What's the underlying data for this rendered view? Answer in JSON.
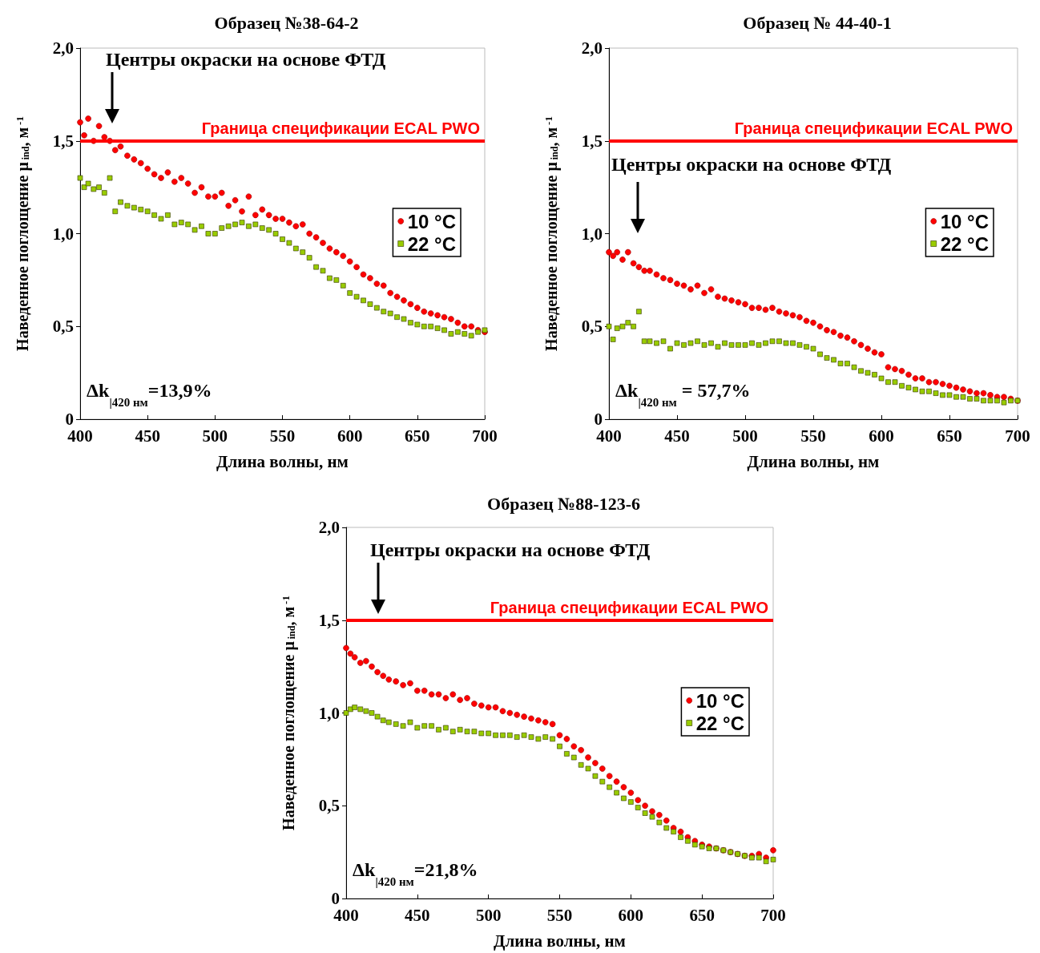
{
  "chart_data": [
    {
      "type": "scatter",
      "title": "Образец №38-64-2",
      "xlabel": "Длина волны, нм",
      "ylabel": "Наведенное поглощение μ$_{ind}$, м$^{-1}$",
      "xlim": [
        400,
        700
      ],
      "xticks": [
        400,
        450,
        500,
        550,
        600,
        650,
        700
      ],
      "ylim": [
        0,
        2
      ],
      "yticks": [
        {
          "value": 0,
          "label": "0"
        },
        {
          "value": 0.5,
          "label": "0,5"
        },
        {
          "value": 1,
          "label": "1,0"
        },
        {
          "value": 1.5,
          "label": "1,5"
        },
        {
          "value": 2,
          "label": "2,0"
        }
      ],
      "legend": "right",
      "series": [
        {
          "name": "10 °C",
          "color": "#ff0000",
          "marker": "circle",
          "x": [
            400,
            403,
            406,
            410,
            414,
            418,
            422,
            426,
            430,
            435,
            440,
            445,
            450,
            455,
            460,
            465,
            470,
            475,
            480,
            485,
            490,
            495,
            500,
            505,
            510,
            515,
            520,
            525,
            530,
            535,
            540,
            545,
            550,
            555,
            560,
            565,
            570,
            575,
            580,
            585,
            590,
            595,
            600,
            605,
            610,
            615,
            620,
            625,
            630,
            635,
            640,
            645,
            650,
            655,
            660,
            665,
            670,
            675,
            680,
            685,
            690,
            695,
            700
          ],
          "values": [
            1.6,
            1.53,
            1.62,
            1.5,
            1.58,
            1.52,
            1.5,
            1.45,
            1.47,
            1.42,
            1.4,
            1.38,
            1.35,
            1.32,
            1.3,
            1.33,
            1.28,
            1.3,
            1.27,
            1.22,
            1.25,
            1.2,
            1.2,
            1.22,
            1.15,
            1.18,
            1.12,
            1.2,
            1.1,
            1.13,
            1.1,
            1.08,
            1.08,
            1.06,
            1.04,
            1.05,
            1.0,
            0.98,
            0.95,
            0.92,
            0.9,
            0.88,
            0.85,
            0.82,
            0.78,
            0.76,
            0.73,
            0.72,
            0.68,
            0.66,
            0.64,
            0.62,
            0.6,
            0.58,
            0.57,
            0.56,
            0.55,
            0.54,
            0.52,
            0.5,
            0.5,
            0.48,
            0.47
          ]
        },
        {
          "name": "22 °C",
          "color": "#99cc00",
          "marker": "square",
          "x": [
            400,
            403,
            406,
            410,
            414,
            418,
            422,
            426,
            430,
            435,
            440,
            445,
            450,
            455,
            460,
            465,
            470,
            475,
            480,
            485,
            490,
            495,
            500,
            505,
            510,
            515,
            520,
            525,
            530,
            535,
            540,
            545,
            550,
            555,
            560,
            565,
            570,
            575,
            580,
            585,
            590,
            595,
            600,
            605,
            610,
            615,
            620,
            625,
            630,
            635,
            640,
            645,
            650,
            655,
            660,
            665,
            670,
            675,
            680,
            685,
            690,
            695,
            700
          ],
          "values": [
            1.3,
            1.25,
            1.27,
            1.24,
            1.25,
            1.22,
            1.3,
            1.12,
            1.17,
            1.15,
            1.14,
            1.13,
            1.12,
            1.1,
            1.08,
            1.1,
            1.05,
            1.06,
            1.05,
            1.02,
            1.04,
            1.0,
            1.0,
            1.03,
            1.04,
            1.05,
            1.06,
            1.04,
            1.05,
            1.03,
            1.02,
            1.0,
            0.97,
            0.95,
            0.92,
            0.9,
            0.87,
            0.82,
            0.8,
            0.76,
            0.75,
            0.72,
            0.68,
            0.66,
            0.64,
            0.62,
            0.6,
            0.58,
            0.57,
            0.55,
            0.54,
            0.52,
            0.51,
            0.5,
            0.5,
            0.49,
            0.48,
            0.46,
            0.47,
            0.46,
            0.45,
            0.47,
            0.48
          ]
        }
      ],
      "ref_lines": [
        {
          "axis": "y",
          "value": 1.5,
          "label": "Граница спецификации ECAL PWO",
          "color": "#ff0000"
        }
      ],
      "annotations": [
        "Центры окраски на основе ФТД",
        "Δk$_{|420 нм}$=13,9%"
      ]
    },
    {
      "type": "scatter",
      "title": "Образец № 44-40-1",
      "xlabel": "Длина волны, нм",
      "ylabel": "Наведенное поглощение μ$_{ind}$, м$^{-1}$",
      "xlim": [
        400,
        700
      ],
      "xticks": [
        400,
        450,
        500,
        550,
        600,
        650,
        700
      ],
      "ylim": [
        0,
        2
      ],
      "yticks": [
        0,
        {
          "value": 0.5,
          "label": "0,5"
        },
        {
          "value": 1,
          "label": "1,0"
        },
        {
          "value": 1.5,
          "label": "1,5"
        },
        {
          "value": 2,
          "label": "2,0"
        }
      ],
      "legend": "right",
      "series": [
        {
          "name": "10 °C",
          "color": "#ff0000",
          "marker": "circle",
          "x": [
            400,
            403,
            406,
            410,
            414,
            418,
            422,
            426,
            430,
            435,
            440,
            445,
            450,
            455,
            460,
            465,
            470,
            475,
            480,
            485,
            490,
            495,
            500,
            505,
            510,
            515,
            520,
            525,
            530,
            535,
            540,
            545,
            550,
            555,
            560,
            565,
            570,
            575,
            580,
            585,
            590,
            595,
            600,
            605,
            610,
            615,
            620,
            625,
            630,
            635,
            640,
            645,
            650,
            655,
            660,
            665,
            670,
            675,
            680,
            685,
            690,
            695,
            700
          ],
          "values": [
            0.9,
            0.88,
            0.9,
            0.86,
            0.9,
            0.84,
            0.82,
            0.8,
            0.8,
            0.78,
            0.76,
            0.75,
            0.73,
            0.72,
            0.7,
            0.72,
            0.68,
            0.7,
            0.66,
            0.65,
            0.64,
            0.63,
            0.62,
            0.6,
            0.6,
            0.59,
            0.6,
            0.58,
            0.57,
            0.56,
            0.55,
            0.53,
            0.52,
            0.5,
            0.48,
            0.47,
            0.45,
            0.44,
            0.42,
            0.4,
            0.38,
            0.36,
            0.35,
            0.28,
            0.27,
            0.26,
            0.24,
            0.22,
            0.22,
            0.2,
            0.2,
            0.19,
            0.18,
            0.17,
            0.16,
            0.15,
            0.14,
            0.14,
            0.13,
            0.12,
            0.12,
            0.11,
            0.1
          ]
        },
        {
          "name": "22 °C",
          "color": "#99cc00",
          "marker": "square",
          "x": [
            400,
            403,
            406,
            410,
            414,
            418,
            422,
            426,
            430,
            435,
            440,
            445,
            450,
            455,
            460,
            465,
            470,
            475,
            480,
            485,
            490,
            495,
            500,
            505,
            510,
            515,
            520,
            525,
            530,
            535,
            540,
            545,
            550,
            555,
            560,
            565,
            570,
            575,
            580,
            585,
            590,
            595,
            600,
            605,
            610,
            615,
            620,
            625,
            630,
            635,
            640,
            645,
            650,
            655,
            660,
            665,
            670,
            675,
            680,
            685,
            690,
            695,
            700
          ],
          "values": [
            0.5,
            0.43,
            0.49,
            0.5,
            0.52,
            0.5,
            0.58,
            0.42,
            0.42,
            0.41,
            0.42,
            0.38,
            0.41,
            0.4,
            0.41,
            0.42,
            0.4,
            0.41,
            0.39,
            0.41,
            0.4,
            0.4,
            0.4,
            0.41,
            0.4,
            0.41,
            0.42,
            0.42,
            0.41,
            0.41,
            0.4,
            0.39,
            0.38,
            0.35,
            0.33,
            0.32,
            0.3,
            0.3,
            0.28,
            0.26,
            0.25,
            0.24,
            0.22,
            0.2,
            0.2,
            0.18,
            0.17,
            0.16,
            0.15,
            0.15,
            0.14,
            0.13,
            0.13,
            0.12,
            0.12,
            0.11,
            0.11,
            0.1,
            0.1,
            0.1,
            0.09,
            0.1,
            0.1
          ]
        }
      ],
      "ref_lines": [
        {
          "axis": "y",
          "value": 1.5,
          "label": "Граница спецификации ECAL PWO",
          "color": "#ff0000"
        }
      ],
      "annotations": [
        "Центры окраски на основе ФТД",
        "Δk$_{|420 нм}$ = 57,7%"
      ]
    },
    {
      "type": "scatter",
      "title": "Образец №88-123-6",
      "xlabel": "Длина волны, нм",
      "ylabel": "Наведенное поглощение μ$_{ind}$, м$^{-1}$",
      "xlim": [
        400,
        700
      ],
      "xticks": [
        400,
        450,
        500,
        550,
        600,
        650,
        700
      ],
      "ylim": [
        0,
        2
      ],
      "yticks": [
        0,
        {
          "value": 0.5,
          "label": "0,5"
        },
        {
          "value": 1,
          "label": "1,0"
        },
        {
          "value": 1.5,
          "label": "1,5"
        },
        {
          "value": 2,
          "label": "2,0"
        }
      ],
      "legend": "right",
      "series": [
        {
          "name": "10 °C",
          "color": "#ff0000",
          "marker": "circle",
          "x": [
            400,
            403,
            406,
            410,
            414,
            418,
            422,
            426,
            430,
            435,
            440,
            445,
            450,
            455,
            460,
            465,
            470,
            475,
            480,
            485,
            490,
            495,
            500,
            505,
            510,
            515,
            520,
            525,
            530,
            535,
            540,
            545,
            550,
            555,
            560,
            565,
            570,
            575,
            580,
            585,
            590,
            595,
            600,
            605,
            610,
            615,
            620,
            625,
            630,
            635,
            640,
            645,
            650,
            655,
            660,
            665,
            670,
            675,
            680,
            685,
            690,
            695,
            700
          ],
          "values": [
            1.35,
            1.32,
            1.3,
            1.27,
            1.28,
            1.25,
            1.22,
            1.2,
            1.18,
            1.17,
            1.15,
            1.16,
            1.12,
            1.12,
            1.1,
            1.1,
            1.08,
            1.1,
            1.07,
            1.08,
            1.05,
            1.04,
            1.03,
            1.03,
            1.01,
            1.0,
            0.99,
            0.98,
            0.97,
            0.96,
            0.95,
            0.94,
            0.88,
            0.86,
            0.82,
            0.8,
            0.76,
            0.73,
            0.7,
            0.66,
            0.63,
            0.6,
            0.57,
            0.53,
            0.5,
            0.47,
            0.45,
            0.42,
            0.38,
            0.36,
            0.33,
            0.31,
            0.29,
            0.28,
            0.27,
            0.26,
            0.25,
            0.24,
            0.23,
            0.23,
            0.24,
            0.22,
            0.26
          ]
        },
        {
          "name": "22 °C",
          "color": "#99cc00",
          "marker": "square",
          "x": [
            400,
            403,
            406,
            410,
            414,
            418,
            422,
            426,
            430,
            435,
            440,
            445,
            450,
            455,
            460,
            465,
            470,
            475,
            480,
            485,
            490,
            495,
            500,
            505,
            510,
            515,
            520,
            525,
            530,
            535,
            540,
            545,
            550,
            555,
            560,
            565,
            570,
            575,
            580,
            585,
            590,
            595,
            600,
            605,
            610,
            615,
            620,
            625,
            630,
            635,
            640,
            645,
            650,
            655,
            660,
            665,
            670,
            675,
            680,
            685,
            690,
            695,
            700
          ],
          "values": [
            1.0,
            1.02,
            1.03,
            1.02,
            1.01,
            1.0,
            0.98,
            0.96,
            0.95,
            0.94,
            0.93,
            0.95,
            0.92,
            0.93,
            0.93,
            0.91,
            0.92,
            0.9,
            0.91,
            0.9,
            0.9,
            0.89,
            0.89,
            0.88,
            0.88,
            0.88,
            0.87,
            0.88,
            0.87,
            0.86,
            0.87,
            0.86,
            0.82,
            0.78,
            0.76,
            0.72,
            0.7,
            0.66,
            0.63,
            0.6,
            0.57,
            0.54,
            0.52,
            0.49,
            0.46,
            0.44,
            0.41,
            0.38,
            0.36,
            0.33,
            0.31,
            0.29,
            0.28,
            0.27,
            0.27,
            0.26,
            0.25,
            0.24,
            0.23,
            0.22,
            0.22,
            0.2,
            0.21
          ]
        }
      ],
      "ref_lines": [
        {
          "axis": "y",
          "value": 1.5,
          "label": "Граница спецификации ECAL PWO",
          "color": "#ff0000"
        }
      ],
      "annotations": [
        "Центры окраски на основе ФТД",
        "Δk$_{|420 нм}$=21,8%"
      ]
    }
  ]
}
